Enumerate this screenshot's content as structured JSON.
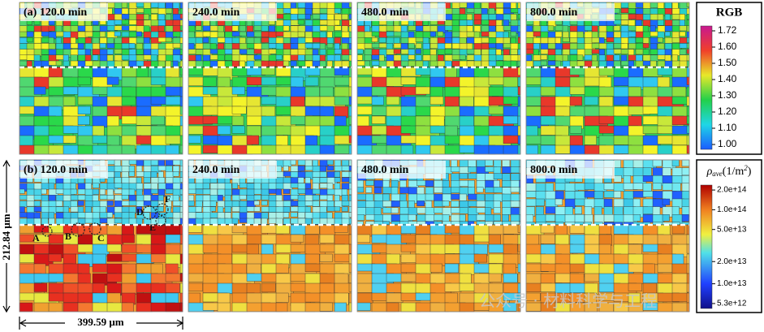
{
  "panels": [
    {
      "label": "(a) 120.0 min"
    },
    {
      "label": "240.0 min"
    },
    {
      "label": "480.0 min"
    },
    {
      "label": "800.0 min"
    },
    {
      "label": "(b) 120.0 min"
    },
    {
      "label": "240.0 min"
    },
    {
      "label": "480.0 min"
    },
    {
      "label": "800.0 min"
    }
  ],
  "colorbars": [
    {
      "title": "RGB",
      "ticks": [
        "1.72",
        "1.60",
        "1.50",
        "1.40",
        "1.30",
        "1.20",
        "1.10",
        "1.00"
      ]
    },
    {
      "title_symbol": "ρ",
      "title_subscript": "ave",
      "title_unit": "(1/m",
      "title_superscript": "2",
      "title_close": ")",
      "ticks": [
        "2.0e+14",
        "1.0e+14",
        "5.0e+13",
        "2.0e+13",
        "1.0e+13",
        "5.3e+12"
      ]
    }
  ],
  "markers": [
    "A",
    "B",
    "C",
    "D",
    "E",
    "F"
  ],
  "scale": {
    "vertical": "212.84 μm",
    "horizontal": "399.59 μm"
  },
  "watermark": "公众号 · 材料科学与工程"
}
